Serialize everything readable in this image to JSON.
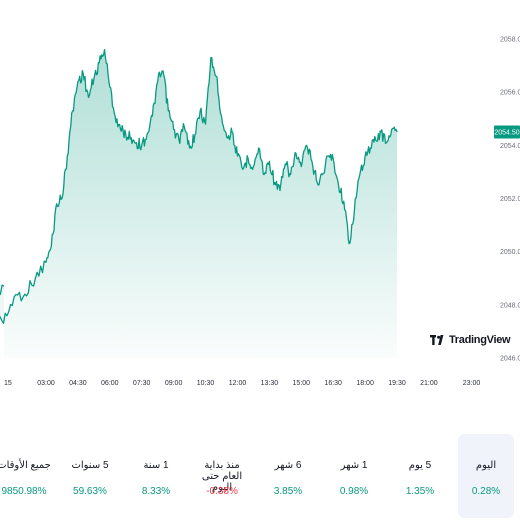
{
  "brand": {
    "name": "TradingView"
  },
  "colors": {
    "line": "#089981",
    "area_top": "#089981",
    "negative": "#f23645",
    "price_tag": "#089981"
  },
  "current_price": "2054.50",
  "chart_data": {
    "type": "area",
    "ylim": [
      2046.0,
      2058.0
    ],
    "y_ticks": [
      "2058.00",
      "2056.00",
      "2054.00",
      "2052.00",
      "2050.00",
      "2048.00",
      "2046.00"
    ],
    "x_ticks": [
      "15",
      "03:00",
      "04:30",
      "06:00",
      "07:30",
      "09:00",
      "10:30",
      "12:00",
      "13:30",
      "15:00",
      "16:30",
      "18:00",
      "19:30",
      "21:00",
      "23:00"
    ],
    "series": [
      {
        "x": [
          "00:00",
          "00:30",
          "01:00",
          "01:30",
          "02:00",
          "02:30",
          "03:00",
          "03:15",
          "03:30",
          "03:45",
          "04:00",
          "04:15",
          "04:30",
          "04:45",
          "05:00",
          "05:15",
          "05:30",
          "05:45",
          "06:00",
          "06:15",
          "06:30",
          "06:45",
          "07:00",
          "07:15",
          "07:30",
          "07:45",
          "08:00",
          "08:15",
          "08:30",
          "08:45",
          "09:00",
          "09:15",
          "09:30",
          "09:45",
          "10:00",
          "10:15",
          "10:30",
          "10:45",
          "11:00",
          "11:15",
          "11:30",
          "11:45",
          "12:00",
          "12:15",
          "12:30",
          "12:45",
          "13:00",
          "13:15",
          "13:30",
          "13:45",
          "14:00",
          "14:15",
          "14:30",
          "14:45",
          "15:00",
          "15:15",
          "15:30",
          "15:45",
          "16:00",
          "16:15",
          "16:30",
          "16:45",
          "17:00",
          "17:15",
          "17:30",
          "17:45",
          "18:00",
          "18:15",
          "18:30",
          "18:45",
          "19:00",
          "19:15",
          "19:30"
        ],
        "values": [
          2048.7,
          2048.1,
          2047.3,
          2048.3,
          2048.4,
          2049.0,
          2049.6,
          2050.2,
          2051.8,
          2052.0,
          2053.6,
          2055.3,
          2056.4,
          2056.7,
          2055.8,
          2056.5,
          2057.1,
          2057.6,
          2056.2,
          2055.1,
          2054.6,
          2054.4,
          2054.3,
          2054.1,
          2054.0,
          2054.4,
          2055.1,
          2056.4,
          2056.8,
          2055.3,
          2054.6,
          2054.2,
          2054.7,
          2053.9,
          2054.4,
          2055.3,
          2054.8,
          2057.3,
          2056.6,
          2055.1,
          2054.3,
          2054.5,
          2053.6,
          2053.1,
          2053.5,
          2053.2,
          2053.9,
          2052.9,
          2053.4,
          2052.6,
          2052.3,
          2053.3,
          2052.9,
          2053.7,
          2053.2,
          2054.0,
          2053.4,
          2052.6,
          2052.9,
          2053.6,
          2053.5,
          2052.5,
          2051.9,
          2050.3,
          2051.6,
          2052.9,
          2053.6,
          2053.9,
          2054.2,
          2054.5,
          2054.1,
          2054.6,
          2054.5
        ]
      }
    ]
  },
  "periods": [
    {
      "label": "اليوم",
      "value": "0.28%",
      "sign": "pos",
      "active": true
    },
    {
      "label": "5 يوم",
      "value": "1.35%",
      "sign": "pos",
      "active": false
    },
    {
      "label": "1 شهر",
      "value": "0.98%",
      "sign": "pos",
      "active": false
    },
    {
      "label": "6 شهر",
      "value": "3.85%",
      "sign": "pos",
      "active": false
    },
    {
      "label": "منذ بداية العام حتى اليوم",
      "value": "0.38%-",
      "sign": "neg",
      "active": false
    },
    {
      "label": "1 سنة",
      "value": "8.33%",
      "sign": "pos",
      "active": false
    },
    {
      "label": "5 سنوات",
      "value": "59.63%",
      "sign": "pos",
      "active": false
    },
    {
      "label": "جميع الأوقات",
      "value": "9850.98%",
      "sign": "pos",
      "active": false
    }
  ]
}
